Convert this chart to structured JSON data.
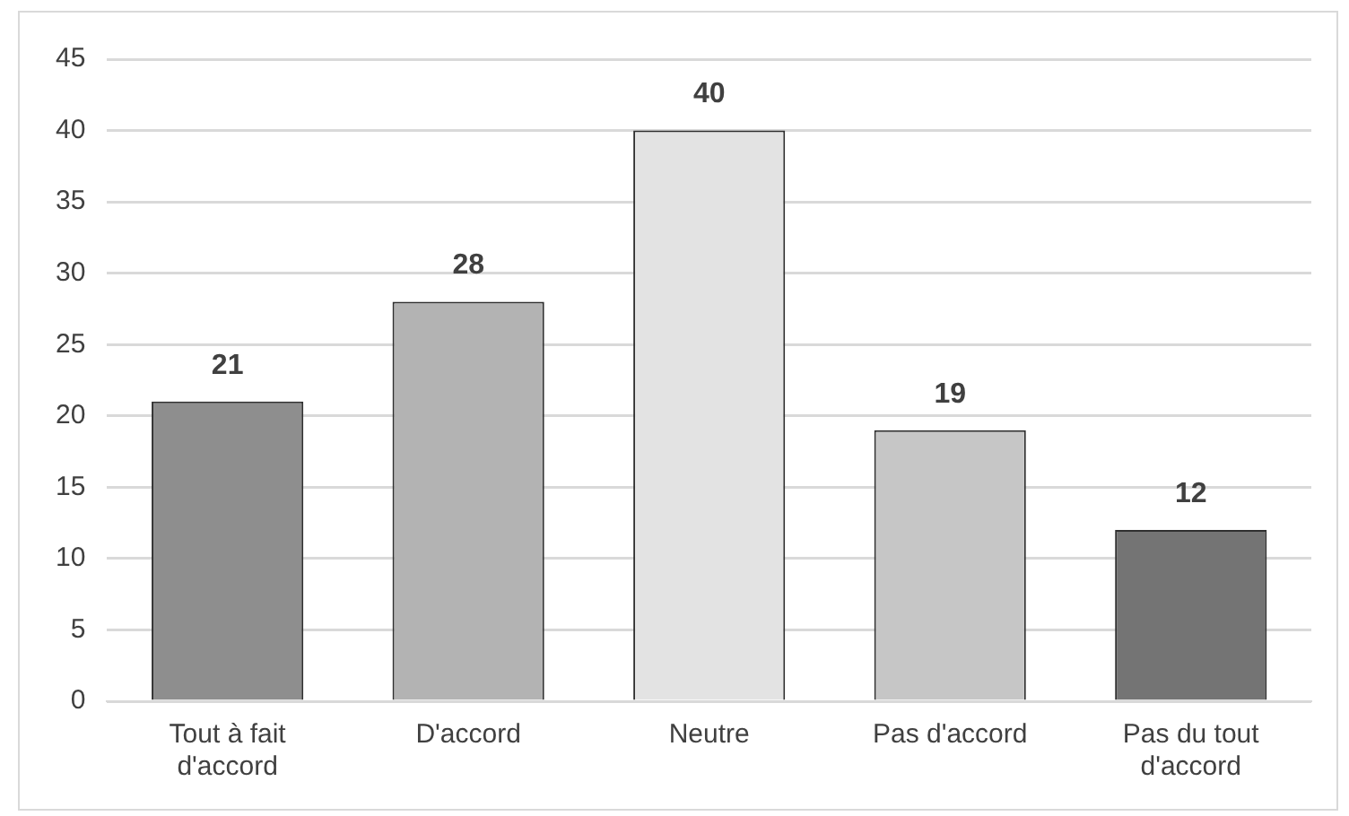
{
  "chart_data": {
    "type": "bar",
    "categories": [
      "Tout à fait d'accord",
      "D'accord",
      "Neutre",
      "Pas d'accord",
      "Pas du tout d'accord"
    ],
    "values": [
      21,
      28,
      40,
      19,
      12
    ],
    "colors": [
      "#8e8e8e",
      "#b3b3b3",
      "#e3e3e3",
      "#c6c6c6",
      "#747474"
    ],
    "ylim": [
      0,
      45
    ],
    "yticks": [
      0,
      5,
      10,
      15,
      20,
      25,
      30,
      35,
      40,
      45
    ],
    "grid": "y",
    "data_labels": true,
    "legend": false
  }
}
